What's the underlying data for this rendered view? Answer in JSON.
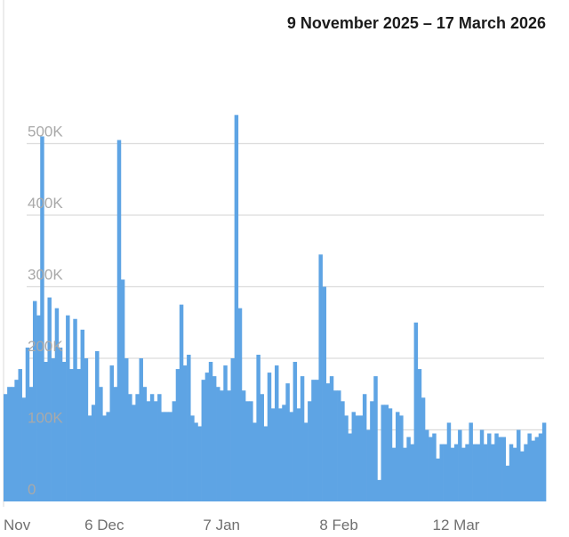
{
  "header": {
    "date_range": "9 November 2025 – 17 March 2026"
  },
  "colors": {
    "bar": "#5ea4e4",
    "grid": "#dcdcdc",
    "y_tick_text": "#a9a9a9",
    "x_tick_text": "#707070"
  },
  "chart_data": {
    "type": "bar",
    "title": "9 November 2025 – 17 March 2026",
    "xlabel": "",
    "ylabel": "",
    "ylim": [
      0,
      550000
    ],
    "grid": true,
    "y_ticks": [
      {
        "label": "0",
        "value": 0
      },
      {
        "label": "100K",
        "value": 100000
      },
      {
        "label": "200K",
        "value": 200000
      },
      {
        "label": "300K",
        "value": 300000
      },
      {
        "label": "400K",
        "value": 400000
      },
      {
        "label": "500K",
        "value": 500000
      }
    ],
    "x_ticks": [
      {
        "label": "Nov",
        "date": "2025-11-09"
      },
      {
        "label": "6 Dec",
        "date": "2025-12-06"
      },
      {
        "label": "7 Jan",
        "date": "2026-01-07"
      },
      {
        "label": "8 Feb",
        "date": "2026-02-08"
      },
      {
        "label": "12 Mar",
        "date": "2026-03-12"
      }
    ],
    "start_date": "2025-11-09",
    "end_date": "2026-03-17",
    "values": [
      150000,
      160000,
      160000,
      170000,
      185000,
      145000,
      215000,
      160000,
      280000,
      260000,
      510000,
      195000,
      285000,
      200000,
      270000,
      215000,
      195000,
      260000,
      185000,
      255000,
      185000,
      240000,
      200000,
      120000,
      135000,
      210000,
      160000,
      120000,
      125000,
      190000,
      160000,
      505000,
      310000,
      200000,
      150000,
      135000,
      150000,
      200000,
      160000,
      140000,
      150000,
      140000,
      150000,
      125000,
      125000,
      125000,
      140000,
      185000,
      275000,
      190000,
      205000,
      120000,
      110000,
      105000,
      170000,
      180000,
      195000,
      175000,
      160000,
      155000,
      190000,
      155000,
      200000,
      540000,
      270000,
      155000,
      140000,
      140000,
      110000,
      205000,
      150000,
      105000,
      180000,
      130000,
      190000,
      130000,
      135000,
      165000,
      125000,
      195000,
      130000,
      175000,
      110000,
      140000,
      170000,
      170000,
      345000,
      300000,
      165000,
      175000,
      155000,
      155000,
      140000,
      120000,
      95000,
      125000,
      120000,
      120000,
      150000,
      100000,
      140000,
      175000,
      30000,
      135000,
      135000,
      130000,
      75000,
      125000,
      120000,
      75000,
      90000,
      80000,
      250000,
      185000,
      145000,
      100000,
      90000,
      95000,
      60000,
      80000,
      80000,
      110000,
      75000,
      80000,
      100000,
      75000,
      80000,
      110000,
      80000,
      80000,
      100000,
      80000,
      95000,
      80000,
      95000,
      90000,
      90000,
      50000,
      80000,
      75000,
      100000,
      70000,
      80000,
      95000,
      85000,
      90000,
      95000,
      110000
    ]
  }
}
